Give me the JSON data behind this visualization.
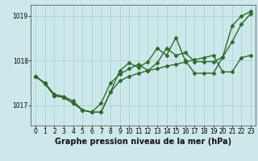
{
  "xlabel": "Graphe pression niveau de la mer (hPa)",
  "background_color": "#cde8ea",
  "grid_color": "#a8ccce",
  "line_color": "#2d6a2d",
  "ylim": [
    1016.55,
    1019.25
  ],
  "xlim": [
    -0.5,
    23.5
  ],
  "yticks": [
    1017,
    1018,
    1019
  ],
  "xticks": [
    0,
    1,
    2,
    3,
    4,
    5,
    6,
    7,
    8,
    9,
    10,
    11,
    12,
    13,
    14,
    15,
    16,
    17,
    18,
    19,
    20,
    21,
    22,
    23
  ],
  "series1": {
    "x": [
      0,
      1,
      2,
      3,
      4,
      5,
      6,
      7,
      8,
      9,
      10,
      11,
      12,
      13,
      14,
      15,
      16,
      17,
      18,
      19,
      20,
      21,
      22,
      23
    ],
    "y": [
      1017.65,
      1017.5,
      1017.25,
      1017.2,
      1017.1,
      1016.9,
      1016.85,
      1016.85,
      1017.3,
      1017.55,
      1017.65,
      1017.72,
      1017.78,
      1017.82,
      1017.88,
      1017.92,
      1017.97,
      1018.02,
      1018.07,
      1018.12,
      1017.75,
      1017.75,
      1018.07,
      1018.12
    ]
  },
  "series2": {
    "x": [
      0,
      1,
      2,
      3,
      4,
      5,
      6,
      7,
      8,
      9,
      10,
      11,
      12,
      13,
      14,
      15,
      16,
      17,
      18,
      19,
      20,
      21,
      22,
      23
    ],
    "y": [
      1017.65,
      1017.48,
      1017.22,
      1017.18,
      1017.05,
      1016.9,
      1016.85,
      1017.05,
      1017.5,
      1017.7,
      1017.82,
      1017.92,
      1017.78,
      1017.95,
      1018.28,
      1018.12,
      1018.18,
      1017.98,
      1017.98,
      1017.98,
      1018.08,
      1018.42,
      1018.82,
      1019.05
    ]
  },
  "series3": {
    "x": [
      0,
      1,
      2,
      3,
      4,
      5,
      6,
      7,
      8,
      9,
      10,
      11,
      12,
      13,
      14,
      15,
      16,
      17,
      18,
      19,
      20,
      21,
      22,
      23
    ],
    "y": [
      1017.65,
      1017.5,
      1017.22,
      1017.18,
      1017.05,
      1016.9,
      1016.85,
      1016.85,
      1017.3,
      1017.78,
      1017.95,
      1017.85,
      1017.98,
      1018.28,
      1018.12,
      1018.52,
      1018.0,
      1017.72,
      1017.72,
      1017.72,
      1018.08,
      1018.78,
      1019.0,
      1019.1
    ]
  },
  "marker": "D",
  "markersize": 2.5,
  "linewidth": 1.0,
  "tick_fontsize": 5.5,
  "label_fontsize": 7.0,
  "figwidth": 3.2,
  "figheight": 2.0,
  "dpi": 100
}
